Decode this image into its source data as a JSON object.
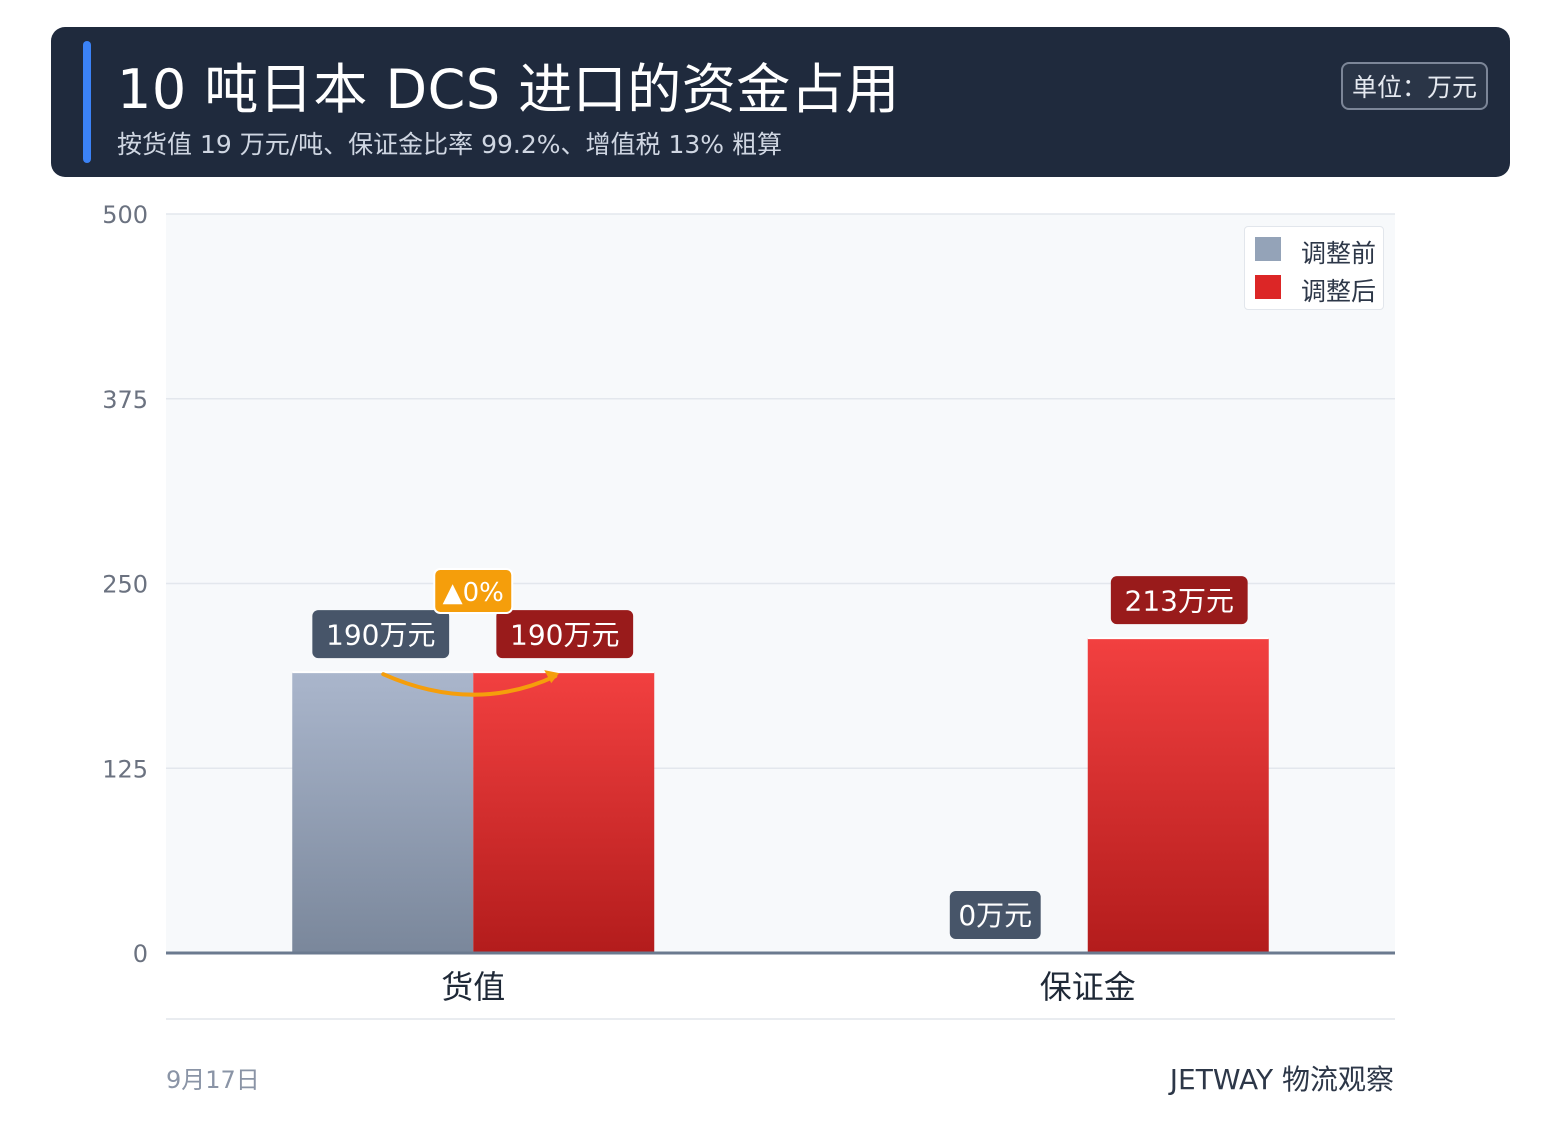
{
  "header": {
    "title": "10 吨日本 DCS 进口的资金占用",
    "subtitle": "按货值 19 万元/吨、保证金比率 99.2%、增值税 13% 粗算",
    "unit_badge": "单位：万元"
  },
  "footer": {
    "date": "9月17日",
    "brand": "JETWAY 物流观察"
  },
  "colors": {
    "header_bg": "#1f2a3d",
    "accent": "#3b82f6",
    "before": "#94a3b8",
    "after": "#dc2626",
    "change_badge": "#f59e0b"
  },
  "chart_data": {
    "type": "bar",
    "categories": [
      "货值",
      "保证金"
    ],
    "series": [
      {
        "name": "调整前",
        "values": [
          190,
          0
        ],
        "labels": [
          "190万元",
          "0万元"
        ]
      },
      {
        "name": "调整后",
        "values": [
          190,
          213
        ],
        "labels": [
          "190万元",
          "213万元"
        ]
      }
    ],
    "ylim": [
      0,
      500
    ],
    "yticks": [
      0,
      125,
      250,
      375,
      500
    ],
    "ytick_labels": [
      "0",
      "125",
      "250",
      "375",
      "500"
    ],
    "grid": true,
    "legend_position": "top-right",
    "annotations": [
      {
        "category": "货值",
        "text": "▲0%",
        "value_percent": 0
      }
    ]
  }
}
